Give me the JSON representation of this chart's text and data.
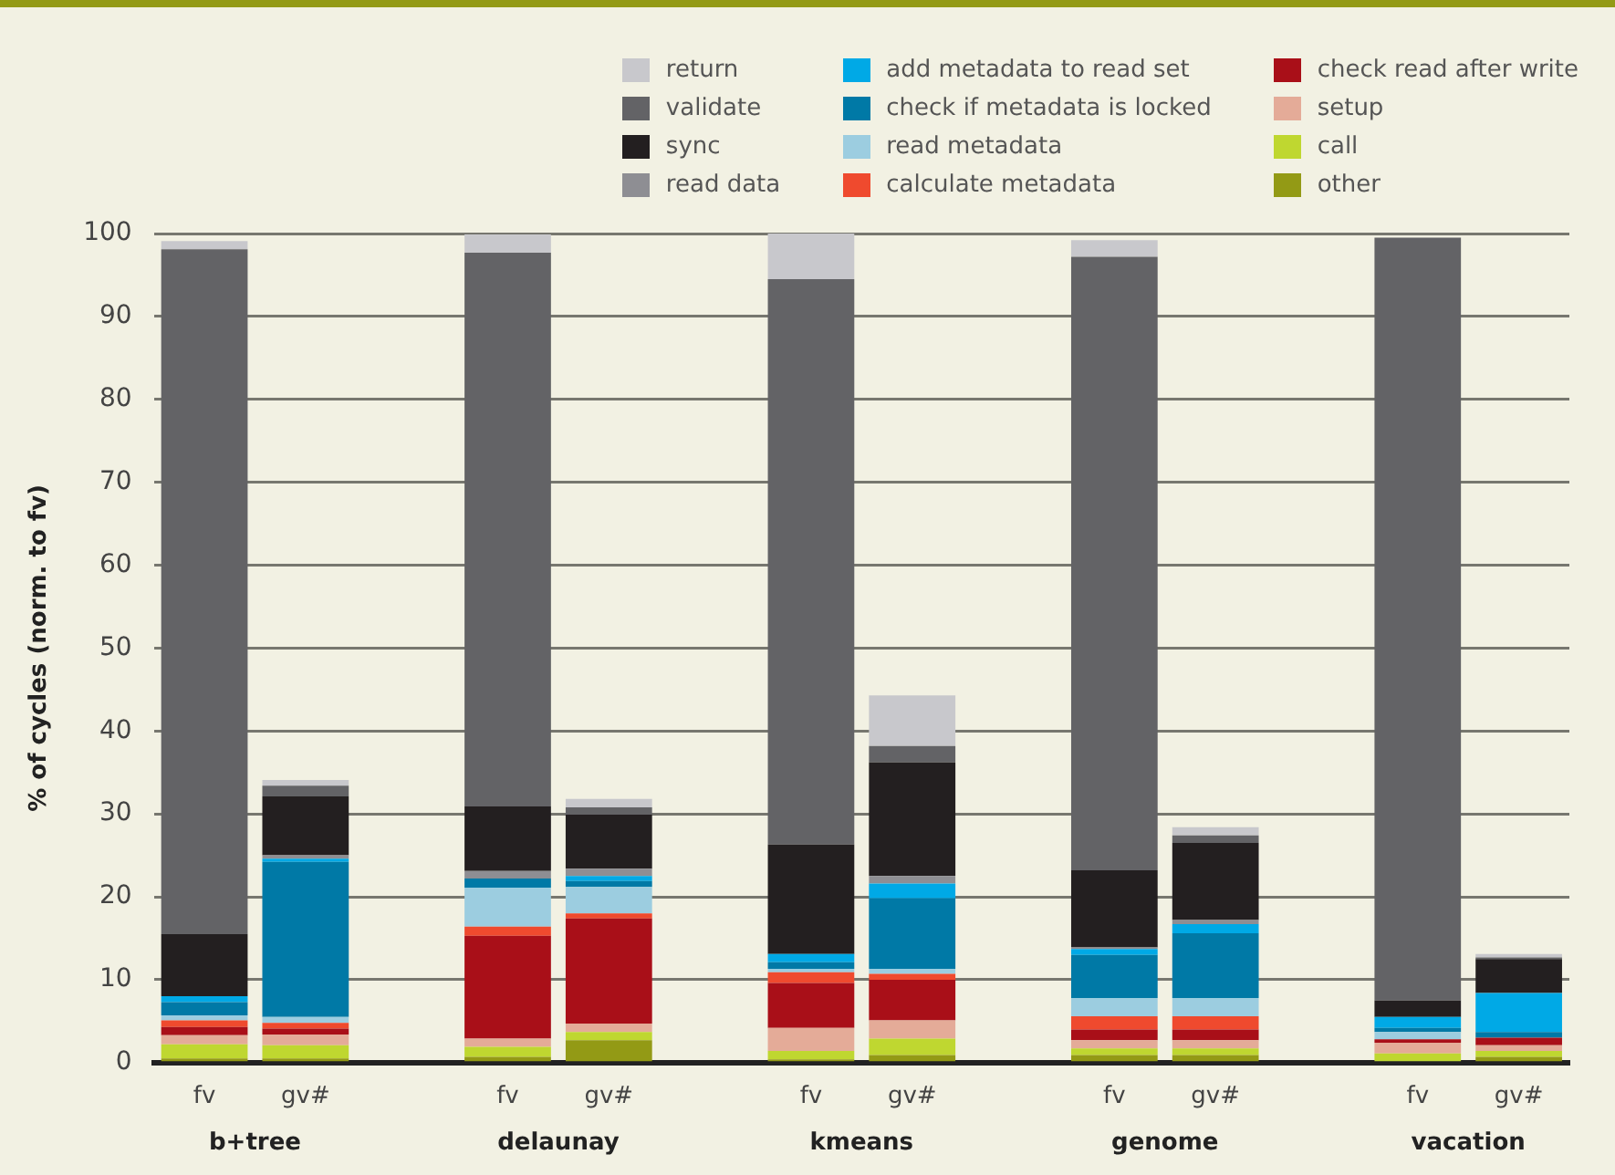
{
  "chart_data": {
    "type": "bar",
    "stacked": true,
    "ylabel": "% of cycles (norm. to fv)",
    "categories": [
      "fv",
      "gv#",
      null,
      "fv",
      "gv#",
      null,
      "fv",
      "gv#",
      null,
      "fv",
      "gv#",
      null,
      "fv",
      "gv#"
    ],
    "annotations": [
      "b+tree",
      "delaunay",
      "kmeans",
      "genome",
      "vacation"
    ],
    "ylim": [
      0,
      100
    ],
    "yticks": [
      0,
      10,
      20,
      30,
      40,
      50,
      60,
      70,
      80,
      90,
      100
    ],
    "grid": "y",
    "legend": "top right",
    "series": [
      {
        "name": "other",
        "color": "#939a15",
        "values": [
          0.5,
          0.5,
          null,
          0.7,
          2.7,
          null,
          0.4,
          0.9,
          null,
          0.9,
          0.9,
          null,
          0,
          0.7
        ]
      },
      {
        "name": "call",
        "color": "#bfd730",
        "values": [
          1.7,
          1.6,
          null,
          1.2,
          1.0,
          null,
          1.0,
          2.0,
          null,
          0.8,
          0.8,
          null,
          1.1,
          0.7
        ]
      },
      {
        "name": "setup",
        "color": "#e4ab98",
        "values": [
          1.1,
          1.3,
          null,
          1.0,
          1.0,
          null,
          2.8,
          2.2,
          null,
          1.0,
          1.0,
          null,
          1.3,
          0.7
        ]
      },
      {
        "name": "check read after write",
        "color": "#a90f18",
        "values": [
          1.0,
          0.7,
          null,
          12.4,
          12.7,
          null,
          5.4,
          4.9,
          null,
          1.3,
          1.3,
          null,
          0.4,
          0.9
        ]
      },
      {
        "name": "calculate metadata",
        "color": "#ef4a2e",
        "values": [
          0.8,
          0.7,
          null,
          1.1,
          0.6,
          null,
          1.3,
          0.7,
          null,
          1.6,
          1.6,
          null,
          0,
          0
        ]
      },
      {
        "name": "read metadata",
        "color": "#9ccde0",
        "values": [
          0.6,
          0.7,
          null,
          4.7,
          3.2,
          null,
          0.4,
          0.6,
          null,
          2.2,
          2.2,
          null,
          0.9,
          0
        ]
      },
      {
        "name": "check if metadata is locked",
        "color": "#0079a6",
        "values": [
          1.6,
          18.7,
          null,
          1.1,
          0.7,
          null,
          0.8,
          8.5,
          null,
          5.2,
          7.8,
          null,
          0.5,
          0.7
        ]
      },
      {
        "name": "add metadata to read set",
        "color": "#00a9e6",
        "values": [
          0.7,
          0.4,
          null,
          0,
          0.6,
          null,
          1.0,
          1.8,
          null,
          0.7,
          1.1,
          null,
          1.3,
          4.7
        ]
      },
      {
        "name": "read data",
        "color": "#8e8e93",
        "values": [
          0,
          0.4,
          null,
          0.9,
          0.9,
          null,
          0,
          0.9,
          null,
          0.2,
          0.5,
          null,
          0,
          0
        ]
      },
      {
        "name": "sync",
        "color": "#231f20",
        "values": [
          7.5,
          7.1,
          null,
          7.8,
          6.5,
          null,
          13.2,
          13.7,
          null,
          9.3,
          9.3,
          null,
          2.0,
          4.1
        ]
      },
      {
        "name": "validate",
        "color": "#636366",
        "values": [
          82.6,
          1.3,
          null,
          66.8,
          0.9,
          null,
          68.2,
          2.0,
          null,
          74,
          0.9,
          null,
          92,
          0.2
        ]
      },
      {
        "name": "return",
        "color": "#c8c8cc",
        "values": [
          1.0,
          0.7,
          null,
          2.2,
          1.0,
          null,
          5.5,
          6.1,
          null,
          2,
          1.0,
          null,
          0,
          0.4
        ]
      }
    ]
  }
}
